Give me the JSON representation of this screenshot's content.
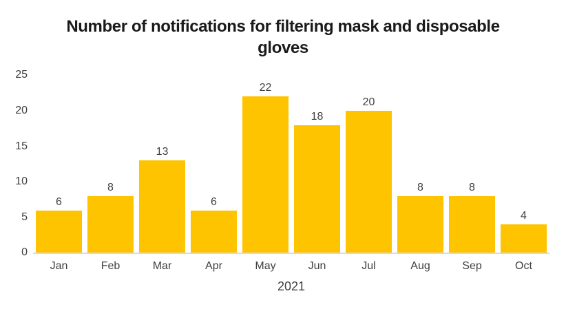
{
  "chart_data": {
    "type": "bar",
    "title": "Number of notifications for filtering mask and disposable gloves",
    "categories": [
      "Jan",
      "Feb",
      "Mar",
      "Apr",
      "May",
      "Jun",
      "Jul",
      "Aug",
      "Sep",
      "Oct"
    ],
    "values": [
      6,
      8,
      13,
      6,
      22,
      18,
      20,
      8,
      8,
      4
    ],
    "xlabel": "2021",
    "ylabel": "",
    "ylim": [
      0,
      25
    ],
    "y_ticks": [
      0,
      5,
      10,
      15,
      20,
      25
    ],
    "data_labels_shown": true,
    "grid": false,
    "legend": false,
    "colors": {
      "bar": "#FFC400",
      "axis_line": "#DCD9D9",
      "tick_text": "#404040",
      "title_text": "#1A1A1A",
      "background": "#FFFFFF"
    }
  }
}
